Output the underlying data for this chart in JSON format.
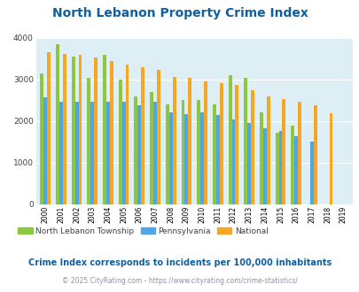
{
  "title": "North Lebanon Property Crime Index",
  "title_color": "#1060a0",
  "years": [
    2000,
    2001,
    2002,
    2003,
    2004,
    2005,
    2006,
    2007,
    2008,
    2009,
    2010,
    2011,
    2012,
    2013,
    2014,
    2015,
    2016,
    2017,
    2018,
    2019
  ],
  "north_lebanon": [
    3150,
    3850,
    3550,
    3050,
    3600,
    3000,
    2600,
    2700,
    2400,
    2500,
    2500,
    2400,
    3100,
    3050,
    2220,
    1730,
    1900,
    0,
    0,
    0
  ],
  "pennsylvania": [
    2580,
    2470,
    2470,
    2470,
    2470,
    2470,
    2380,
    2470,
    2220,
    2160,
    2210,
    2140,
    2050,
    1960,
    1820,
    1760,
    1640,
    1500,
    0,
    0
  ],
  "national": [
    3650,
    3620,
    3600,
    3530,
    3440,
    3360,
    3300,
    3230,
    3070,
    3040,
    2960,
    2910,
    2880,
    2740,
    2600,
    2520,
    2470,
    2380,
    2180,
    0
  ],
  "north_lebanon_color": "#8dc63f",
  "pennsylvania_color": "#4da6e8",
  "national_color": "#f5a623",
  "bg_color": "#ddeef5",
  "ylim": [
    0,
    4000
  ],
  "yticks": [
    0,
    1000,
    2000,
    3000,
    4000
  ],
  "subtitle": "Crime Index corresponds to incidents per 100,000 inhabitants",
  "subtitle_color": "#1060a0",
  "footer": "© 2025 CityRating.com - https://www.cityrating.com/crime-statistics/",
  "footer_color": "#9090b0",
  "legend_labels": [
    "North Lebanon Township",
    "Pennsylvania",
    "National"
  ]
}
